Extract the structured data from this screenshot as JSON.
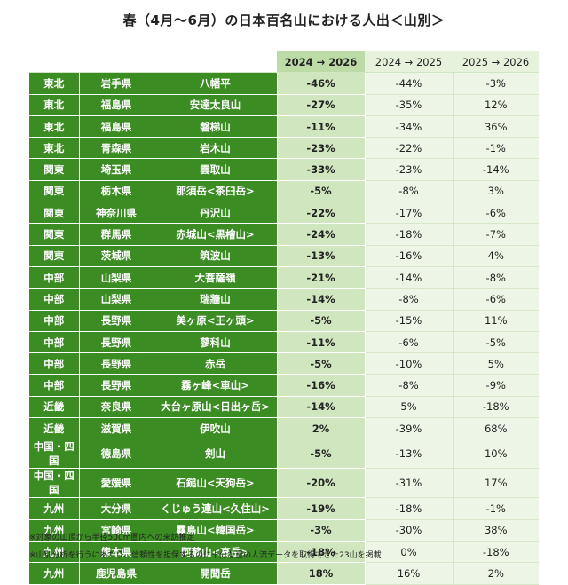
{
  "title": "春（4月〜6月）の日本百名山における人出＜山別＞",
  "columns": {
    "col1": "2024 → 2026",
    "col2": "2024 → 2025",
    "col3": "2025 → 2026"
  },
  "rows": [
    {
      "region": "東北",
      "pref": "岩手県",
      "mountain": "八幡平",
      "v1": "-46%",
      "v2": "-44%",
      "v3": "-3%"
    },
    {
      "region": "東北",
      "pref": "福島県",
      "mountain": "安達太良山",
      "v1": "-27%",
      "v2": "-35%",
      "v3": "12%"
    },
    {
      "region": "東北",
      "pref": "福島県",
      "mountain": "磐梯山",
      "v1": "-11%",
      "v2": "-34%",
      "v3": "36%"
    },
    {
      "region": "東北",
      "pref": "青森県",
      "mountain": "岩木山",
      "v1": "-23%",
      "v2": "-22%",
      "v3": "-1%"
    },
    {
      "region": "関東",
      "pref": "埼玉県",
      "mountain": "雲取山",
      "v1": "-33%",
      "v2": "-23%",
      "v3": "-14%"
    },
    {
      "region": "関東",
      "pref": "栃木県",
      "mountain": "那須岳<茶臼岳>",
      "v1": "-5%",
      "v2": "-8%",
      "v3": "3%"
    },
    {
      "region": "関東",
      "pref": "神奈川県",
      "mountain": "丹沢山",
      "v1": "-22%",
      "v2": "-17%",
      "v3": "-6%"
    },
    {
      "region": "関東",
      "pref": "群馬県",
      "mountain": "赤城山<黒檜山>",
      "v1": "-24%",
      "v2": "-18%",
      "v3": "-7%"
    },
    {
      "region": "関東",
      "pref": "茨城県",
      "mountain": "筑波山",
      "v1": "-13%",
      "v2": "-16%",
      "v3": "4%"
    },
    {
      "region": "中部",
      "pref": "山梨県",
      "mountain": "大菩薩嶺",
      "v1": "-21%",
      "v2": "-14%",
      "v3": "-8%"
    },
    {
      "region": "中部",
      "pref": "山梨県",
      "mountain": "瑞牆山",
      "v1": "-14%",
      "v2": "-8%",
      "v3": "-6%"
    },
    {
      "region": "中部",
      "pref": "長野県",
      "mountain": "美ヶ原<王ヶ頭>",
      "v1": "-5%",
      "v2": "-15%",
      "v3": "11%"
    },
    {
      "region": "中部",
      "pref": "長野県",
      "mountain": "蓼科山",
      "v1": "-11%",
      "v2": "-6%",
      "v3": "-5%"
    },
    {
      "region": "中部",
      "pref": "長野県",
      "mountain": "赤岳",
      "v1": "-5%",
      "v2": "-10%",
      "v3": "5%"
    },
    {
      "region": "中部",
      "pref": "長野県",
      "mountain": "霧ヶ峰<車山>",
      "v1": "-16%",
      "v2": "-8%",
      "v3": "-9%"
    },
    {
      "region": "近畿",
      "pref": "奈良県",
      "mountain": "大台ヶ原山<日出ヶ岳>",
      "v1": "-14%",
      "v2": "5%",
      "v3": "-18%"
    },
    {
      "region": "近畿",
      "pref": "滋賀県",
      "mountain": "伊吹山",
      "v1": "2%",
      "v2": "-39%",
      "v3": "68%"
    },
    {
      "region": "中国・四国",
      "pref": "徳島県",
      "mountain": "剣山",
      "v1": "-5%",
      "v2": "-13%",
      "v3": "10%"
    },
    {
      "region": "中国・四国",
      "pref": "愛媛県",
      "mountain": "石鎚山<天狗岳>",
      "v1": "-20%",
      "v2": "-31%",
      "v3": "17%"
    },
    {
      "region": "九州",
      "pref": "大分県",
      "mountain": "くじゅう連山<久住山>",
      "v1": "-19%",
      "v2": "-18%",
      "v3": "-1%"
    },
    {
      "region": "九州",
      "pref": "宮崎県",
      "mountain": "霧島山<韓国岳>",
      "v1": "-3%",
      "v2": "-30%",
      "v3": "38%"
    },
    {
      "region": "九州",
      "pref": "熊本県",
      "mountain": "阿蘇山<高岳>",
      "v1": "-18%",
      "v2": "0%",
      "v3": "-18%"
    },
    {
      "region": "九州",
      "pref": "鹿児島県",
      "mountain": "開聞岳",
      "v1": "18%",
      "v2": "16%",
      "v3": "2%"
    }
  ],
  "notes": {
    "note1": "※対象の山頂から半径500m圏内への来訪推定",
    "note2": "※山別分析を行うにあたり、信頼性を担保するのに十分な量の人流データを取得できた23山を掲載"
  },
  "colors": {
    "header_green": "#3c8c24",
    "highlight_col": "#cfe6be",
    "light_col": "#edf6e6"
  }
}
